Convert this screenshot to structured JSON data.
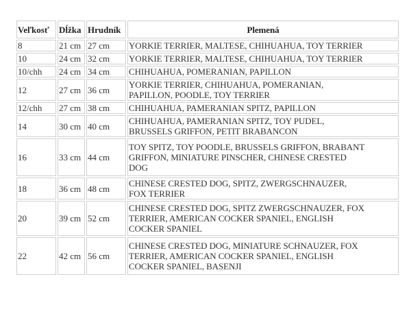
{
  "headers": [
    "Veľkosť",
    "Dĺžka",
    "Hrudník",
    "Plemená"
  ],
  "rows": [
    {
      "size": "8",
      "length": "21 cm",
      "chest": "27 cm",
      "breeds": [
        "YORKIE TERRIER, MALTESE, CHIHUAHUA, TOY TERRIER"
      ]
    },
    {
      "size": "10",
      "length": "24 cm",
      "chest": "32 cm",
      "breeds": [
        "YORKIE TERRIER, MALTESE, CHIHUAHUA, TOY TERRIER"
      ]
    },
    {
      "size": "10/chh",
      "length": "24 cm",
      "chest": "34 cm",
      "breeds": [
        "CHIHUAHUA, POMERANIAN, PAPILLON"
      ]
    },
    {
      "size": "12",
      "length": "27 cm",
      "chest": "36 cm",
      "breeds": [
        "YORKIE TERRIER, CHIHUAHUA, POMERANIAN,",
        "PAPILLON, POODLE, TOY TERRIER"
      ]
    },
    {
      "size": "12/chh",
      "length": "27 cm",
      "chest": "38 cm",
      "breeds": [
        "CHIHUAHUA, PAMERANIAN SPITZ, PAPILLON"
      ]
    },
    {
      "size": "14",
      "length": "30 cm",
      "chest": "40 cm",
      "breeds": [
        "CHIHUAHUA, PAMERANIAN SPITZ, TOY PUDEL,",
        "BRUSSELS GRIFFON, PETIT BRABANCON"
      ]
    },
    {
      "size": "16",
      "length": "33 cm",
      "chest": "44 cm",
      "breeds": [
        "TOY SPITZ, TOY POODLE, BRUSSELS GRIFFON, BRABANT",
        "GRIFFON, MINIATURE PINSCHER, CHINESE CRESTED",
        "DOG"
      ]
    },
    {
      "size": "18",
      "length": "36 cm",
      "chest": "48 cm",
      "breeds": [
        "CHINESE CRESTED DOG, SPITZ, ZWERGSCHNAUZER,",
        "FOX TERRIER"
      ]
    },
    {
      "size": "20",
      "length": "39 cm",
      "chest": "52 cm",
      "breeds": [
        "CHINESE CRESTED DOG, SPITZ ZWERGSCHNAUZER, FOX",
        "TERRIER, AMERICAN COCKER SPANIEL, ENGLISH",
        "COCKER SPANIEL"
      ]
    },
    {
      "size": "22",
      "length": "42 cm",
      "chest": "56 cm",
      "breeds": [
        "CHINESE CRESTED DOG, MINIATURE SCHNAUZER, FOX",
        "TERRIER, AMERICAN COCKER SPANIEL, ENGLISH",
        "COCKER SPANIEL, BASENJI"
      ]
    }
  ]
}
